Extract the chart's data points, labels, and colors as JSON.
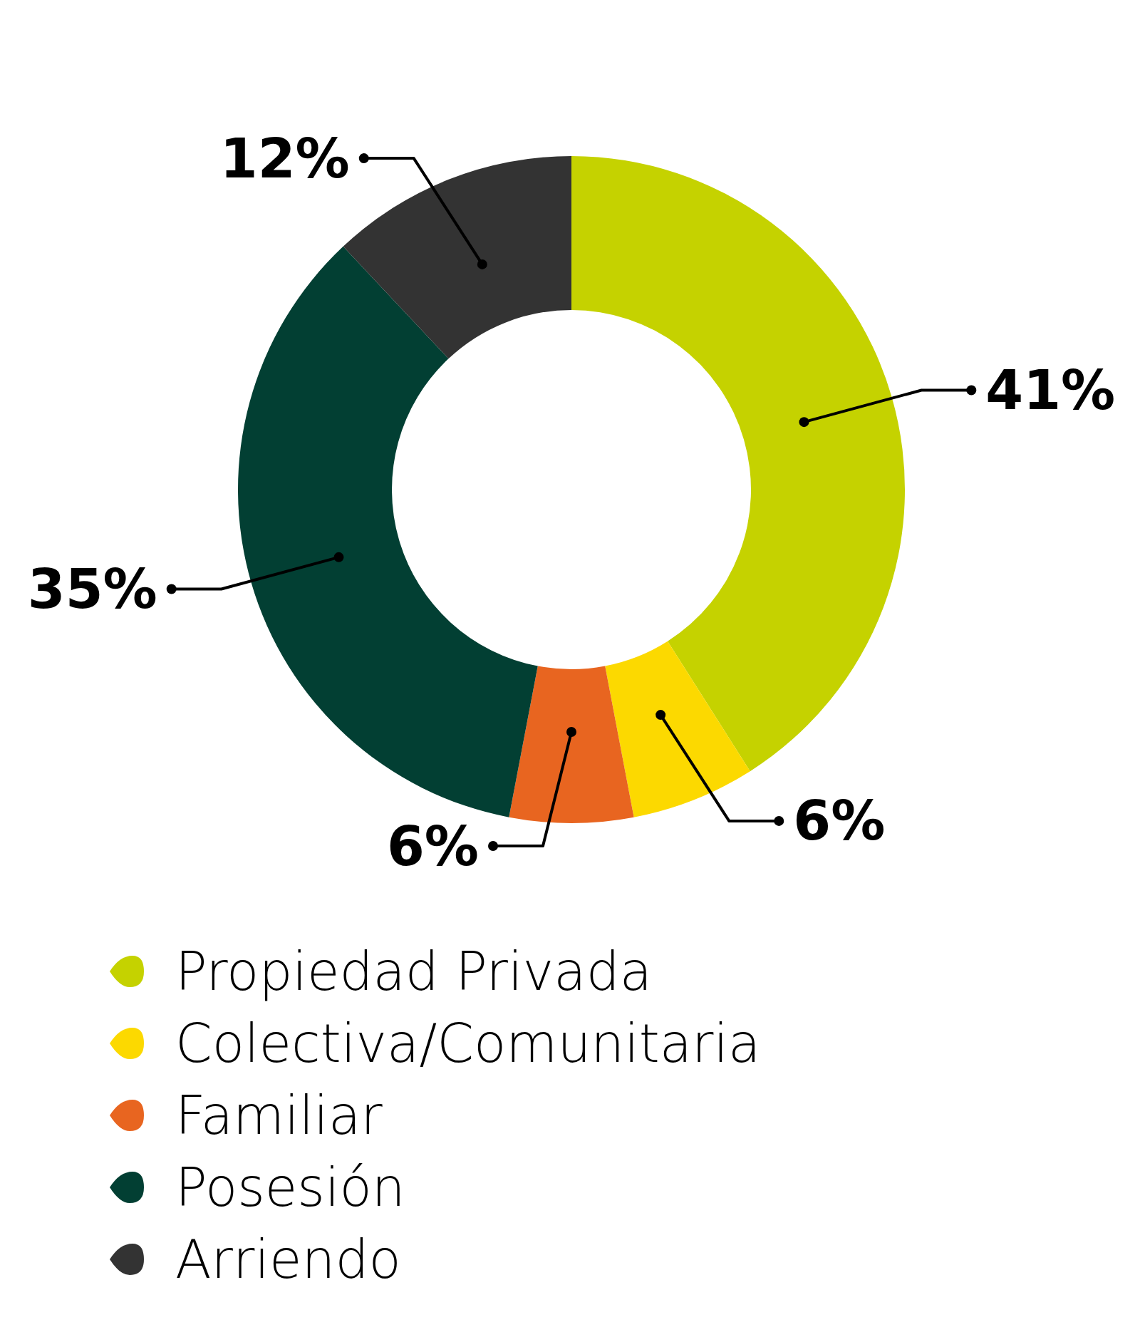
{
  "chart_data": {
    "type": "donut",
    "categories": [
      "Propiedad Privada",
      "Colectiva/Comunitaria",
      "Familiar",
      "Posesión",
      "Arriendo"
    ],
    "values": [
      41,
      6,
      6,
      35,
      12
    ],
    "colors": [
      "#c5d200",
      "#fcd900",
      "#e86520",
      "#023f33",
      "#333333"
    ],
    "value_labels": [
      "41%",
      "6%",
      "6%",
      "35%",
      "12%"
    ],
    "legend": "bottom"
  }
}
